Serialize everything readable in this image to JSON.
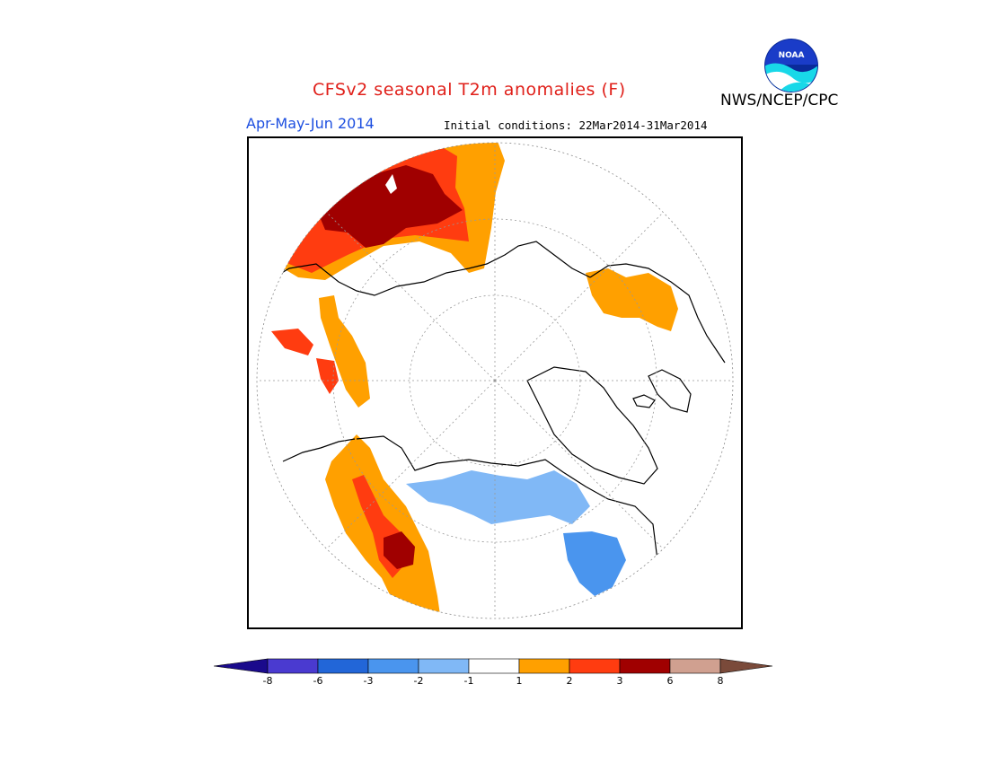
{
  "header": {
    "title": "CFSv2 seasonal T2m anomalies (F)",
    "agency": "NWS/NCEP/CPC",
    "period": "Apr-May-Jun 2014",
    "initial_conditions": "Initial conditions: 22Mar2014-31Mar2014",
    "logo_text": "NOAA"
  },
  "legend": {
    "tick_labels": [
      "-8",
      "-6",
      "-3",
      "-2",
      "-1",
      "1",
      "2",
      "3",
      "6",
      "8"
    ],
    "colors": [
      "#1a0a8c",
      "#4a3ad0",
      "#2266d8",
      "#4a95ee",
      "#80b8f6",
      "#ffffff",
      "#ffa000",
      "#ff3c10",
      "#a00000",
      "#d0a090",
      "#7a4a3a"
    ]
  },
  "map": {
    "projection": "north polar stereographic",
    "anomaly_colors": {
      "plus_1_to_2": "#ffa000",
      "plus_2_to_3": "#ff3c10",
      "plus_3_to_6": "#a00000",
      "minus_1_to_2": "#80b8f6",
      "minus_2_to_3": "#4a95ee",
      "minus_3_to_6": "#2266d8"
    }
  }
}
